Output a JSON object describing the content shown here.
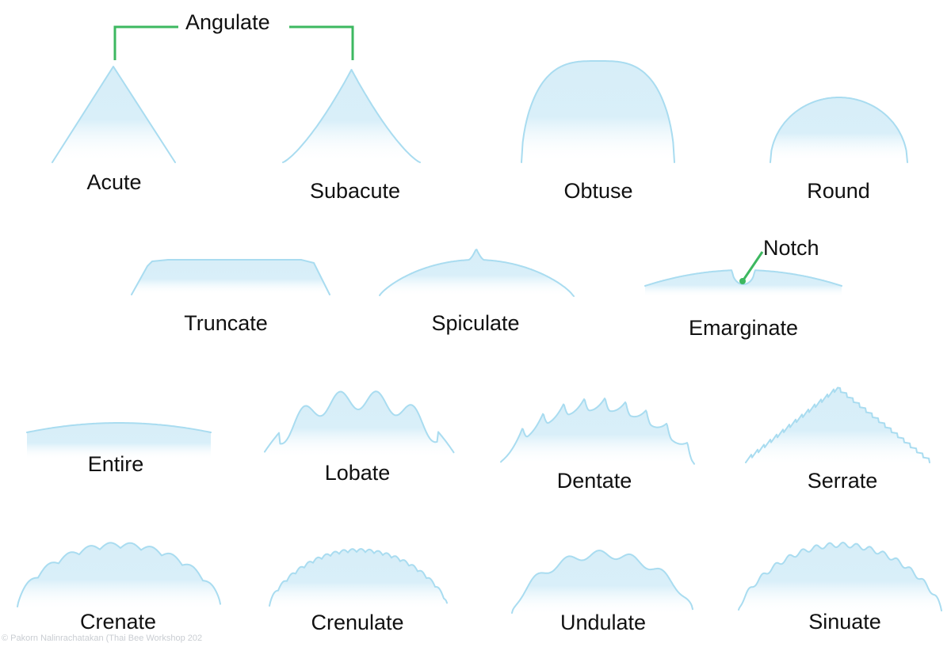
{
  "callouts": {
    "angulate": "Angulate",
    "notch": "Notch"
  },
  "shapes": [
    {
      "id": "acute",
      "label": "Acute"
    },
    {
      "id": "subacute",
      "label": "Subacute"
    },
    {
      "id": "obtuse",
      "label": "Obtuse"
    },
    {
      "id": "round",
      "label": "Round"
    },
    {
      "id": "truncate",
      "label": "Truncate"
    },
    {
      "id": "spiculate",
      "label": "Spiculate"
    },
    {
      "id": "emarginate",
      "label": "Emarginate"
    },
    {
      "id": "entire",
      "label": "Entire"
    },
    {
      "id": "lobate",
      "label": "Lobate"
    },
    {
      "id": "dentate",
      "label": "Dentate"
    },
    {
      "id": "serrate",
      "label": "Serrate"
    },
    {
      "id": "crenate",
      "label": "Crenate"
    },
    {
      "id": "crenulate",
      "label": "Crenulate"
    },
    {
      "id": "undulate",
      "label": "Undulate"
    },
    {
      "id": "sinuate",
      "label": "Sinuate"
    }
  ],
  "credit": "© Pakorn Nalinrachatakan (Thai Bee Workshop 202",
  "colors": {
    "fill": "#d7eef8",
    "stroke": "#a9dcf0",
    "accent": "#3db860",
    "text": "#111111"
  }
}
